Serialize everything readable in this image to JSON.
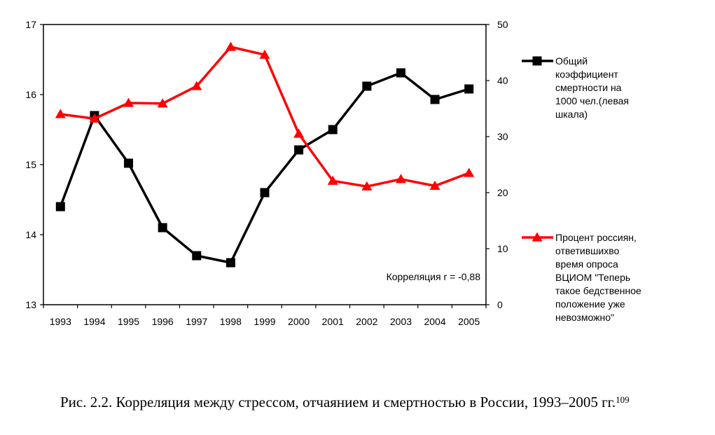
{
  "chart_data": {
    "type": "line",
    "categories": [
      "1993",
      "1994",
      "1995",
      "1996",
      "1997",
      "1998",
      "1999",
      "2000",
      "2001",
      "2002",
      "2003",
      "2004",
      "2005"
    ],
    "y_left": {
      "min": 13,
      "max": 17,
      "ticks": [
        "13",
        "14",
        "15",
        "16",
        "17"
      ]
    },
    "y_right": {
      "min": 0,
      "max": 50,
      "ticks": [
        "0",
        "10",
        "20",
        "30",
        "40",
        "50"
      ]
    },
    "grid": false,
    "series": [
      {
        "name": "Общий коэффициент смертности на 1000 чел.(левая шкала)",
        "axis": "left",
        "color": "#000000",
        "marker": "square",
        "values": [
          14.4,
          15.7,
          15.02,
          14.1,
          13.7,
          13.6,
          14.6,
          15.21,
          15.5,
          16.12,
          16.31,
          15.93,
          16.08
        ]
      },
      {
        "name": "Процент россиян, ответившихво время опроса ВЦИОМ \"Теперь такое бедственное положение уже невозможно\"",
        "axis": "right",
        "color": "#ff0000",
        "marker": "triangle",
        "values": [
          34,
          33.2,
          36,
          35.9,
          39,
          46,
          44.6,
          30.5,
          22.1,
          21.1,
          22.4,
          21.2,
          23.5
        ]
      }
    ],
    "legend": {
      "placement": "right",
      "mortality_lines": [
        "Общий",
        "коэффициент",
        "смертности на",
        "1000 чел.(левая",
        "шкала)"
      ],
      "survey_lines": [
        "Процент россиян,",
        "ответившихво",
        "время опроса",
        "ВЦИОМ \"Теперь",
        "такое бедственное",
        "положение уже",
        "невозможно\""
      ]
    },
    "annotation": "Корреляция r = -0,88"
  },
  "caption": {
    "text": "Рис. 2.2. Корреляция между стрессом, отчаянием и смертностью в России, 1993–2005 гг.",
    "footnote": "109"
  }
}
